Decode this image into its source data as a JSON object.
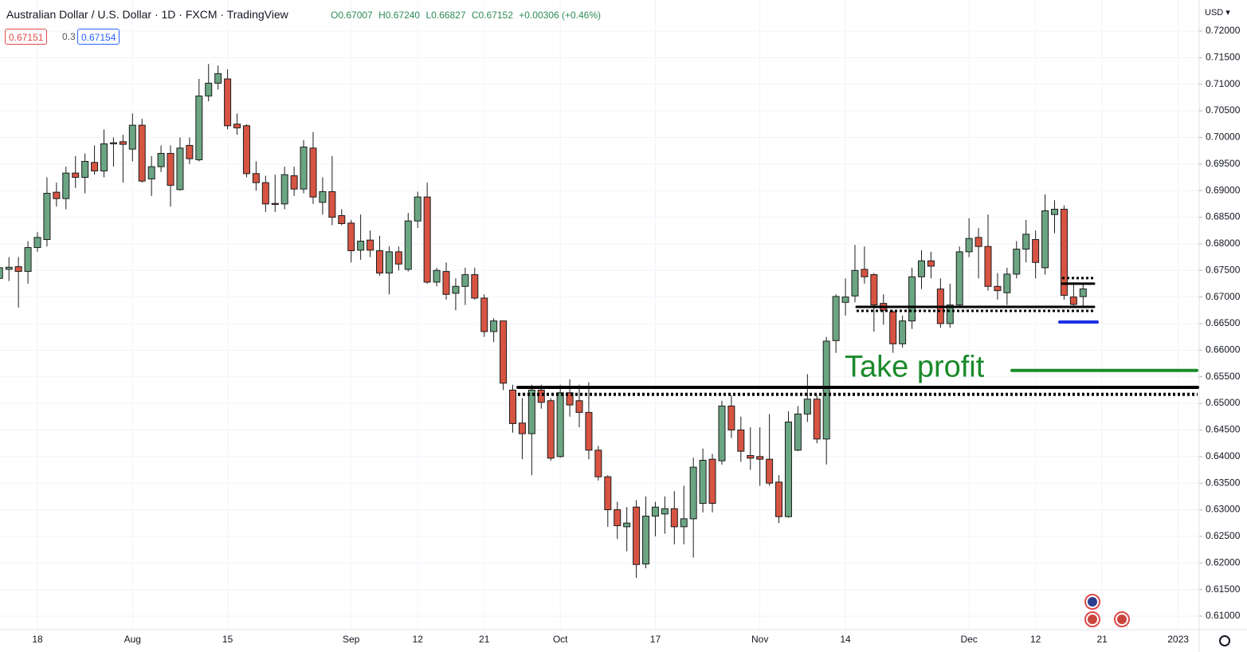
{
  "header": {
    "title": "Australian Dollar / U.S. Dollar · 1D · FXCM · TradingView",
    "ohlc": [
      "O0.67007",
      "H0.67240",
      "L0.66827",
      "C0.67152",
      "+0.00306 (+0.46%)"
    ],
    "sell": "0.67151",
    "spread": "0.3",
    "buy": "0.67154",
    "currency": "USD"
  },
  "chart_data": {
    "type": "candlestick",
    "up_color": "#6ba583",
    "down_color": "#d75442",
    "grid": true,
    "categories": [
      null,
      null,
      null,
      null,
      "18",
      null,
      null,
      null,
      null,
      null,
      null,
      null,
      null,
      null,
      "Aug",
      null,
      null,
      null,
      null,
      null,
      null,
      null,
      null,
      null,
      "15",
      null,
      null,
      null,
      null,
      null,
      null,
      null,
      null,
      null,
      null,
      null,
      null,
      "Sep",
      null,
      null,
      null,
      null,
      null,
      null,
      "12",
      null,
      null,
      null,
      null,
      null,
      null,
      "21",
      null,
      null,
      null,
      null,
      null,
      null,
      null,
      "Oct",
      null,
      null,
      null,
      null,
      null,
      null,
      null,
      null,
      null,
      "17",
      null,
      null,
      null,
      null,
      null,
      null,
      null,
      null,
      null,
      null,
      "Nov",
      null,
      null,
      null,
      null,
      null,
      null,
      null,
      null,
      "14",
      null,
      null,
      null,
      null,
      null,
      null,
      null,
      null,
      null,
      null,
      null,
      null,
      "Dec",
      null,
      null,
      null,
      null,
      null,
      null,
      "12",
      null,
      null,
      null,
      null,
      null,
      null,
      "21",
      null,
      null,
      null,
      null,
      null,
      null,
      null,
      "2023"
    ],
    "open": [
      0.6735,
      0.6752,
      0.6757,
      0.6748,
      0.6793,
      0.6808,
      0.6897,
      0.6885,
      0.6933,
      0.6925,
      0.6953,
      0.6937,
      0.6988,
      0.6992,
      0.6978,
      0.7023,
      0.6922,
      0.6945,
      0.697,
      0.6902,
      0.6985,
      0.6958,
      0.7078,
      0.7102,
      0.711,
      0.7025,
      0.7022,
      0.6932,
      0.6915,
      0.6876,
      0.6875,
      0.6928,
      0.6903,
      0.698,
      0.6878,
      0.6898,
      0.6853,
      0.6839,
      0.6788,
      0.6807,
      0.6787,
      0.6745,
      0.6785,
      0.6752,
      0.6843,
      0.6888,
      0.6728,
      0.6748,
      0.6707,
      0.672,
      0.6742,
      0.6698,
      0.6635,
      0.6655,
      0.6525,
      0.6463,
      0.6443,
      0.6525,
      0.6505,
      0.64,
      0.652,
      0.6505,
      0.6483,
      0.6412,
      0.6362,
      0.63,
      0.6268,
      0.6305,
      0.6198,
      0.6288,
      0.6292,
      0.6302,
      0.6268,
      0.6283,
      0.6312,
      0.6395,
      0.6392,
      0.6495,
      0.645,
      0.6402,
      0.64,
      0.6395,
      0.6352,
      0.6287,
      0.6412,
      0.648,
      0.6508,
      0.6433,
      0.6618,
      0.669,
      0.6702,
      0.6752,
      0.6742,
      0.6688,
      0.6672,
      0.6612,
      0.6655,
      0.6738,
      0.6768,
      0.6715,
      0.665,
      0.6685,
      0.6785,
      0.6812,
      0.6795,
      0.672,
      0.6708,
      0.6743,
      0.679,
      0.6808,
      0.6755,
      0.6855,
      0.6865,
      0.67,
      0.67007,
      null,
      null,
      null,
      null,
      null,
      null,
      null,
      null,
      null,
      null
    ],
    "high": [
      0.6765,
      0.6775,
      0.6775,
      0.6805,
      0.6822,
      0.6925,
      0.6915,
      0.6945,
      0.6965,
      0.697,
      0.6985,
      0.7015,
      0.7,
      0.7005,
      0.7045,
      0.7035,
      0.6965,
      0.6985,
      0.6985,
      0.7,
      0.7,
      0.711,
      0.7138,
      0.7135,
      0.7128,
      0.7045,
      0.7025,
      0.6955,
      0.6928,
      0.693,
      0.6945,
      0.6945,
      0.6995,
      0.701,
      0.6925,
      0.6965,
      0.6865,
      0.6845,
      0.6855,
      0.6825,
      0.6815,
      0.6795,
      0.6795,
      0.6858,
      0.6898,
      0.6915,
      0.6755,
      0.6765,
      0.6735,
      0.6755,
      0.6755,
      0.6705,
      0.666,
      0.6655,
      0.6535,
      0.651,
      0.6535,
      0.6535,
      0.651,
      0.6535,
      0.6545,
      0.6535,
      0.654,
      0.642,
      0.6365,
      0.6315,
      0.6305,
      0.6318,
      0.6325,
      0.6315,
      0.6325,
      0.6335,
      0.6345,
      0.6398,
      0.6415,
      0.6405,
      0.6505,
      0.6515,
      0.6475,
      0.6455,
      0.6455,
      0.648,
      0.6365,
      0.6485,
      0.6495,
      0.6555,
      0.6515,
      0.6625,
      0.6705,
      0.6735,
      0.6798,
      0.6795,
      0.6745,
      0.6705,
      0.6675,
      0.6665,
      0.6755,
      0.6788,
      0.6785,
      0.6735,
      0.6725,
      0.6795,
      0.6848,
      0.683,
      0.6855,
      0.6745,
      0.6755,
      0.6805,
      0.6845,
      0.6825,
      0.6893,
      0.6882,
      0.6872,
      0.6728,
      0.6724,
      null,
      null,
      null,
      null,
      null,
      null,
      null,
      null,
      null,
      null
    ],
    "low": [
      0.67,
      0.673,
      0.668,
      0.6725,
      0.6785,
      0.6795,
      0.687,
      0.6865,
      0.6905,
      0.6895,
      0.693,
      0.6925,
      0.6945,
      0.6915,
      0.6955,
      0.6915,
      0.689,
      0.6935,
      0.687,
      0.69,
      0.695,
      0.6955,
      0.7068,
      0.709,
      0.7015,
      0.7005,
      0.6925,
      0.69,
      0.686,
      0.686,
      0.6865,
      0.689,
      0.6895,
      0.6875,
      0.6855,
      0.6835,
      0.6835,
      0.6765,
      0.677,
      0.6775,
      0.674,
      0.6705,
      0.675,
      0.6748,
      0.683,
      0.6725,
      0.672,
      0.6695,
      0.6675,
      0.6685,
      0.6695,
      0.6625,
      0.6615,
      0.6525,
      0.6445,
      0.6395,
      0.6365,
      0.649,
      0.6392,
      0.6398,
      0.6475,
      0.6455,
      0.6395,
      0.6355,
      0.6268,
      0.6245,
      0.6222,
      0.6172,
      0.619,
      0.625,
      0.6255,
      0.6235,
      0.6235,
      0.621,
      0.6295,
      0.6295,
      0.6385,
      0.6435,
      0.639,
      0.6375,
      0.6345,
      0.6345,
      0.6275,
      0.6285,
      0.641,
      0.6465,
      0.6425,
      0.6385,
      0.6595,
      0.6665,
      0.669,
      0.6725,
      0.6635,
      0.6648,
      0.6595,
      0.6605,
      0.664,
      0.6715,
      0.6735,
      0.6642,
      0.6642,
      0.668,
      0.6775,
      0.6735,
      0.6712,
      0.6695,
      0.6685,
      0.6735,
      0.6765,
      0.6735,
      0.6742,
      0.682,
      0.6695,
      0.668,
      0.66827,
      null,
      null,
      null,
      null,
      null,
      null,
      null,
      null,
      null,
      null
    ],
    "close": [
      0.6755,
      0.6756,
      0.6748,
      0.6793,
      0.6812,
      0.6895,
      0.6885,
      0.6933,
      0.6925,
      0.6955,
      0.6937,
      0.6988,
      0.699,
      0.6987,
      0.7023,
      0.6918,
      0.6945,
      0.697,
      0.691,
      0.698,
      0.696,
      0.7078,
      0.7102,
      0.712,
      0.7022,
      0.7018,
      0.6932,
      0.6915,
      0.6875,
      0.6874,
      0.693,
      0.6903,
      0.6982,
      0.6888,
      0.6898,
      0.685,
      0.6838,
      0.6787,
      0.6805,
      0.6788,
      0.6745,
      0.6785,
      0.6762,
      0.6843,
      0.6888,
      0.6728,
      0.675,
      0.6705,
      0.672,
      0.6742,
      0.6698,
      0.6635,
      0.6655,
      0.6538,
      0.6462,
      0.6443,
      0.6525,
      0.6502,
      0.6397,
      0.652,
      0.6497,
      0.6483,
      0.6412,
      0.6362,
      0.63,
      0.627,
      0.6275,
      0.6197,
      0.6288,
      0.6305,
      0.6302,
      0.6268,
      0.6283,
      0.638,
      0.6393,
      0.6312,
      0.6495,
      0.645,
      0.641,
      0.6397,
      0.6395,
      0.635,
      0.6287,
      0.6465,
      0.648,
      0.6508,
      0.6433,
      0.6617,
      0.6701,
      0.67,
      0.675,
      0.6738,
      0.6685,
      0.6675,
      0.6612,
      0.6655,
      0.6738,
      0.6768,
      0.6758,
      0.665,
      0.6685,
      0.6785,
      0.681,
      0.6795,
      0.672,
      0.6712,
      0.6743,
      0.679,
      0.6818,
      0.6765,
      0.6862,
      0.6865,
      0.6703,
      0.6686,
      0.67152,
      null,
      null,
      null,
      null,
      null,
      null,
      null,
      null,
      null,
      null
    ],
    "ylim": [
      0.60745,
      0.72584
    ],
    "yticks": [
      {
        "value": 0.61,
        "label": "0.61000"
      },
      {
        "value": 0.615,
        "label": "0.61500"
      },
      {
        "value": 0.62,
        "label": "0.62000"
      },
      {
        "value": 0.625,
        "label": "0.62500"
      },
      {
        "value": 0.63,
        "label": "0.63000"
      },
      {
        "value": 0.635,
        "label": "0.63500"
      },
      {
        "value": 0.64,
        "label": "0.64000"
      },
      {
        "value": 0.645,
        "label": "0.64500"
      },
      {
        "value": 0.65,
        "label": "0.65000"
      },
      {
        "value": 0.655,
        "label": "0.65500"
      },
      {
        "value": 0.66,
        "label": "0.66000"
      },
      {
        "value": 0.665,
        "label": "0.66500"
      },
      {
        "value": 0.67,
        "label": "0.67000"
      },
      {
        "value": 0.675,
        "label": "0.67500"
      },
      {
        "value": 0.68,
        "label": "0.68000"
      },
      {
        "value": 0.685,
        "label": "0.68500"
      },
      {
        "value": 0.69,
        "label": "0.69000"
      },
      {
        "value": 0.695,
        "label": "0.69500"
      },
      {
        "value": 0.7,
        "label": "0.70000"
      },
      {
        "value": 0.705,
        "label": "0.70500"
      },
      {
        "value": 0.71,
        "label": "0.71000"
      },
      {
        "value": 0.715,
        "label": "0.71500"
      },
      {
        "value": 0.72,
        "label": "0.72000"
      }
    ],
    "levels": [
      {
        "value": 0.653,
        "color": "#000000",
        "style": "solid"
      },
      {
        "value": 0.6517,
        "color": "#000000",
        "style": "dotted"
      },
      {
        "value": 0.66815,
        "color": "#000000",
        "style": "solid"
      },
      {
        "value": 0.6674,
        "color": "#000000",
        "style": "dotted"
      },
      {
        "value": 0.6725,
        "color": "#000000",
        "style": "solid"
      },
      {
        "value": 0.67355,
        "color": "#000000",
        "style": "dotted"
      },
      {
        "value": 0.6653,
        "color": "#1e2ee6",
        "style": "solid"
      },
      {
        "value": 0.6562,
        "color": "#1a8a2a",
        "style": "solid",
        "label": "Take profit"
      }
    ]
  }
}
